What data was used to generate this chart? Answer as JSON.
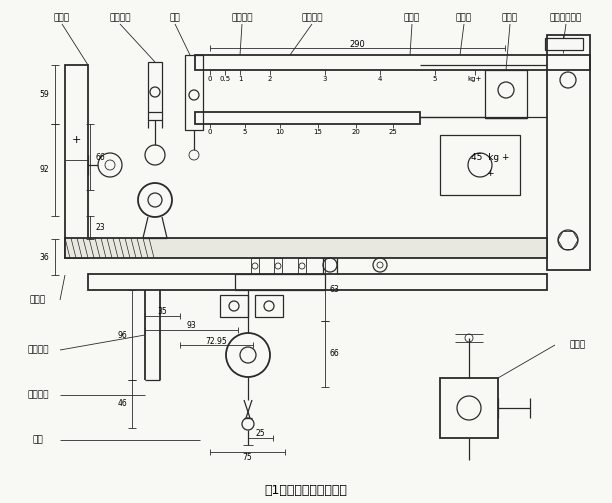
{
  "title": "图1松杆秤结构示意图．",
  "background": "#f5f5f0",
  "line_color": "#2a2a2a",
  "top_labels": [
    "平衡轮",
    "修正游轮",
    "支架",
    "计量主杆",
    "计量剪杆",
    "剪游轮",
    "主游轮",
    "规准器",
    "接近开关触头"
  ],
  "left_labels": [
    "秸托板",
    "传力杮杆",
    "承重杮杆",
    "吸钉"
  ],
  "right_labels": [
    "配重砂"
  ],
  "dim_290": "290",
  "dim_59": "59",
  "dim_92": "92",
  "dim_66": "66",
  "dim_23": "23",
  "dim_36": "36",
  "dim_96": "96",
  "dim_46": "46",
  "dim_35": "35",
  "dim_93": "93",
  "dim_72_95": "72.95",
  "dim_63": "63",
  "dim_66b": "66",
  "dim_75": "75",
  "dim_25": "25",
  "scale_top": [
    "0",
    "0.5",
    "1",
    "2",
    "3",
    "4",
    "5",
    "kg+"
  ],
  "scale_bottom": [
    "0",
    "5",
    "10",
    "15",
    "20",
    "25"
  ],
  "weight_45": "45  kg +",
  "weight_plus": "+"
}
